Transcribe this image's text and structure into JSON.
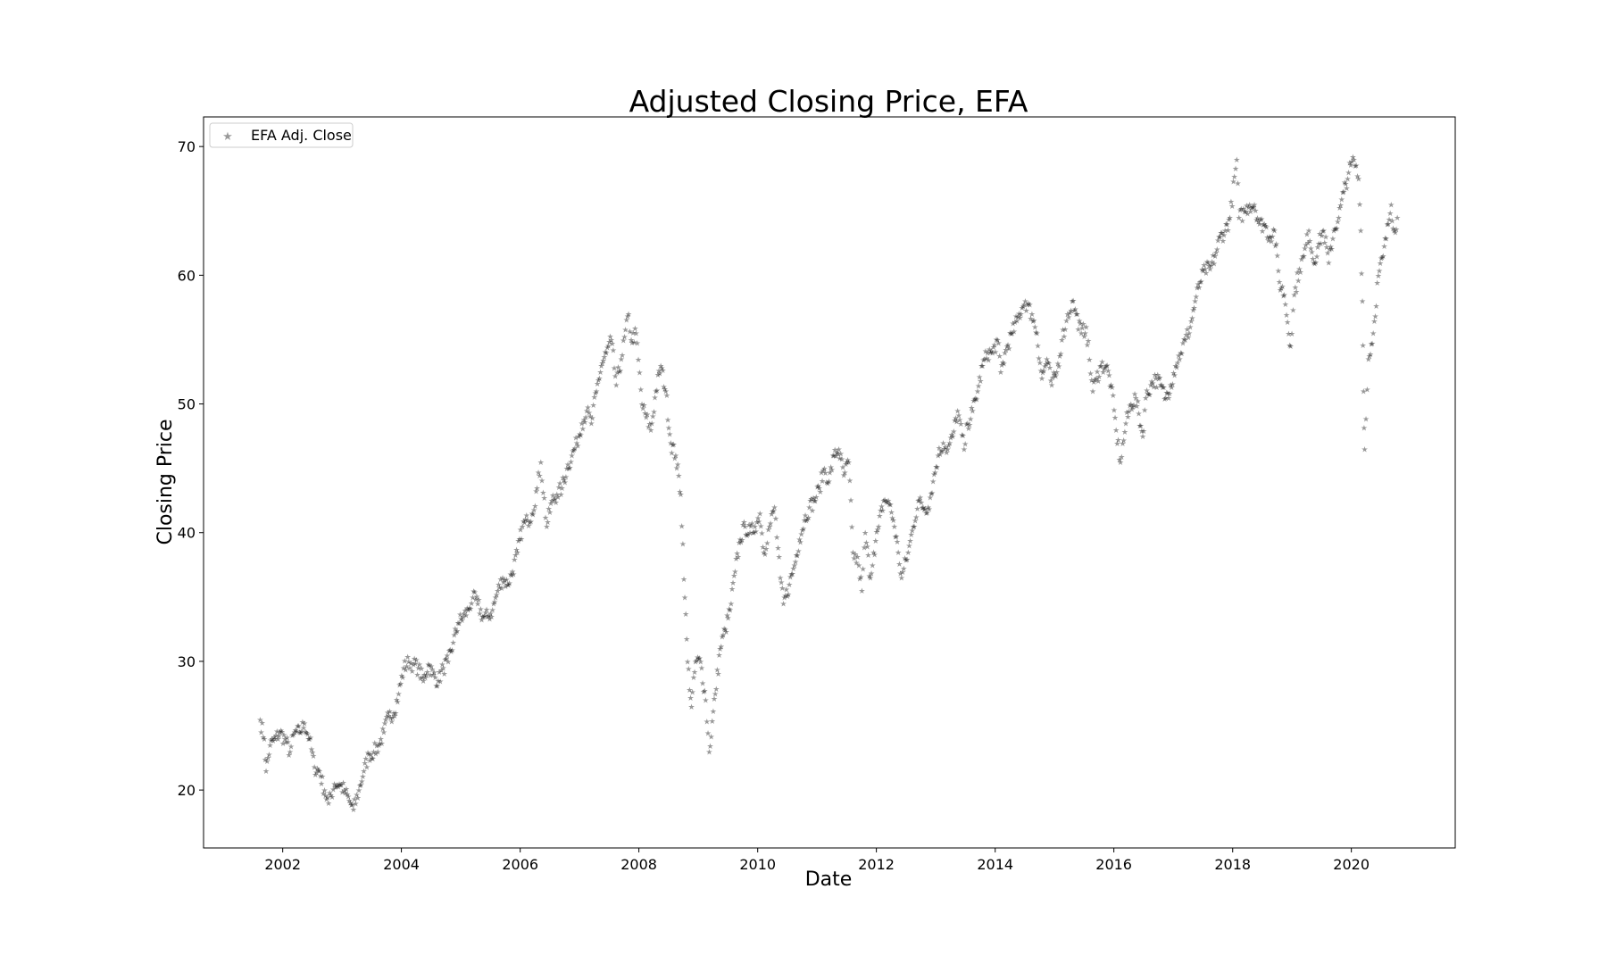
{
  "chart_data": {
    "type": "scatter",
    "title": "Adjusted Closing Price, EFA",
    "xlabel": "Date",
    "ylabel": "Closing Price",
    "xlim": [
      "2000-09-01",
      "2021-10-01"
    ],
    "ylim": [
      15.5,
      72.3
    ],
    "x_ticks": [
      "2002",
      "2004",
      "2006",
      "2008",
      "2010",
      "2012",
      "2014",
      "2016",
      "2018",
      "2020"
    ],
    "y_ticks": [
      "20",
      "30",
      "40",
      "50",
      "60",
      "70"
    ],
    "grid": false,
    "legend_position": "top-left",
    "marker_color": "#000000",
    "marker_alpha": 0.4,
    "series": [
      {
        "name": "EFA Adj. Close",
        "marker": "star",
        "points": [
          [
            "2001-08-15",
            25.5
          ],
          [
            "2001-09-10",
            24.0
          ],
          [
            "2001-09-21",
            21.5
          ],
          [
            "2001-10-15",
            23.5
          ],
          [
            "2001-11-15",
            24.0
          ],
          [
            "2001-12-15",
            24.5
          ],
          [
            "2002-01-15",
            24.0
          ],
          [
            "2002-02-15",
            23.0
          ],
          [
            "2002-03-15",
            24.5
          ],
          [
            "2002-04-15",
            24.5
          ],
          [
            "2002-05-15",
            25.2
          ],
          [
            "2002-06-15",
            24.0
          ],
          [
            "2002-07-15",
            21.8
          ],
          [
            "2002-08-15",
            21.5
          ],
          [
            "2002-09-15",
            20.0
          ],
          [
            "2002-10-10",
            19.0
          ],
          [
            "2002-11-15",
            20.5
          ],
          [
            "2002-12-15",
            20.5
          ],
          [
            "2003-01-15",
            20.0
          ],
          [
            "2003-02-15",
            19.2
          ],
          [
            "2003-03-12",
            18.5
          ],
          [
            "2003-04-15",
            20.0
          ],
          [
            "2003-05-15",
            21.5
          ],
          [
            "2003-06-15",
            22.8
          ],
          [
            "2003-07-15",
            23.0
          ],
          [
            "2003-08-15",
            23.5
          ],
          [
            "2003-09-15",
            24.5
          ],
          [
            "2003-10-15",
            25.8
          ],
          [
            "2003-11-15",
            26.0
          ],
          [
            "2003-12-15",
            27.5
          ],
          [
            "2004-01-15",
            29.5
          ],
          [
            "2004-02-15",
            30.0
          ],
          [
            "2004-03-15",
            29.8
          ],
          [
            "2004-04-15",
            29.5
          ],
          [
            "2004-05-15",
            28.5
          ],
          [
            "2004-06-15",
            29.8
          ],
          [
            "2004-07-15",
            29.0
          ],
          [
            "2004-08-15",
            28.5
          ],
          [
            "2004-09-15",
            29.5
          ],
          [
            "2004-10-15",
            30.0
          ],
          [
            "2004-11-15",
            31.5
          ],
          [
            "2004-12-15",
            33.0
          ],
          [
            "2005-01-15",
            33.5
          ],
          [
            "2005-02-15",
            34.0
          ],
          [
            "2005-03-15",
            35.0
          ],
          [
            "2005-04-15",
            34.5
          ],
          [
            "2005-05-15",
            33.5
          ],
          [
            "2005-06-15",
            33.5
          ],
          [
            "2005-07-15",
            34.0
          ],
          [
            "2005-08-15",
            35.5
          ],
          [
            "2005-09-15",
            36.5
          ],
          [
            "2005-10-15",
            36.0
          ],
          [
            "2005-11-15",
            37.0
          ],
          [
            "2005-12-15",
            38.5
          ],
          [
            "2006-01-15",
            40.5
          ],
          [
            "2006-02-15",
            41.0
          ],
          [
            "2006-03-15",
            41.5
          ],
          [
            "2006-04-15",
            43.5
          ],
          [
            "2006-05-08",
            45.5
          ],
          [
            "2006-06-13",
            40.5
          ],
          [
            "2006-07-15",
            42.5
          ],
          [
            "2006-08-15",
            43.0
          ],
          [
            "2006-09-15",
            43.5
          ],
          [
            "2006-10-15",
            45.0
          ],
          [
            "2006-11-15",
            46.0
          ],
          [
            "2006-12-15",
            47.0
          ],
          [
            "2007-01-15",
            48.5
          ],
          [
            "2007-02-15",
            49.5
          ],
          [
            "2007-03-15",
            48.5
          ],
          [
            "2007-04-15",
            51.0
          ],
          [
            "2007-05-15",
            53.0
          ],
          [
            "2007-06-15",
            54.0
          ],
          [
            "2007-07-15",
            55.0
          ],
          [
            "2007-08-15",
            51.5
          ],
          [
            "2007-09-15",
            53.5
          ],
          [
            "2007-10-30",
            57.0
          ],
          [
            "2007-11-15",
            55.0
          ],
          [
            "2007-12-15",
            55.5
          ],
          [
            "2008-01-20",
            50.0
          ],
          [
            "2008-02-15",
            49.0
          ],
          [
            "2008-03-15",
            48.0
          ],
          [
            "2008-04-15",
            51.0
          ],
          [
            "2008-05-15",
            53.0
          ],
          [
            "2008-06-15",
            51.0
          ],
          [
            "2008-07-15",
            47.0
          ],
          [
            "2008-08-15",
            46.0
          ],
          [
            "2008-09-15",
            43.0
          ],
          [
            "2008-10-10",
            35.0
          ],
          [
            "2008-10-27",
            30.0
          ],
          [
            "2008-11-20",
            26.5
          ],
          [
            "2008-12-15",
            30.0
          ],
          [
            "2009-01-15",
            30.0
          ],
          [
            "2009-02-15",
            27.0
          ],
          [
            "2009-03-09",
            23.0
          ],
          [
            "2009-04-15",
            27.5
          ],
          [
            "2009-05-15",
            31.0
          ],
          [
            "2009-06-15",
            32.5
          ],
          [
            "2009-07-15",
            34.0
          ],
          [
            "2009-08-15",
            37.0
          ],
          [
            "2009-09-15",
            39.5
          ],
          [
            "2009-10-15",
            40.5
          ],
          [
            "2009-11-15",
            40.0
          ],
          [
            "2009-12-15",
            40.5
          ],
          [
            "2010-01-15",
            41.5
          ],
          [
            "2010-02-08",
            38.5
          ],
          [
            "2010-03-15",
            40.5
          ],
          [
            "2010-04-15",
            42.0
          ],
          [
            "2010-05-20",
            36.5
          ],
          [
            "2010-06-08",
            34.5
          ],
          [
            "2010-07-15",
            36.0
          ],
          [
            "2010-08-15",
            37.5
          ],
          [
            "2010-09-15",
            39.5
          ],
          [
            "2010-10-15",
            41.0
          ],
          [
            "2010-11-15",
            42.0
          ],
          [
            "2010-12-15",
            42.5
          ],
          [
            "2011-01-15",
            43.5
          ],
          [
            "2011-02-15",
            45.0
          ],
          [
            "2011-03-15",
            44.0
          ],
          [
            "2011-04-15",
            46.0
          ],
          [
            "2011-05-15",
            46.5
          ],
          [
            "2011-06-15",
            44.5
          ],
          [
            "2011-07-15",
            45.5
          ],
          [
            "2011-08-10",
            38.5
          ],
          [
            "2011-09-15",
            37.5
          ],
          [
            "2011-10-04",
            35.5
          ],
          [
            "2011-10-25",
            40.0
          ],
          [
            "2011-11-25",
            36.5
          ],
          [
            "2011-12-15",
            38.5
          ],
          [
            "2012-01-15",
            40.5
          ],
          [
            "2012-02-15",
            42.5
          ],
          [
            "2012-03-15",
            42.5
          ],
          [
            "2012-04-15",
            41.0
          ],
          [
            "2012-05-15",
            38.5
          ],
          [
            "2012-06-04",
            36.5
          ],
          [
            "2012-07-15",
            38.5
          ],
          [
            "2012-08-15",
            40.5
          ],
          [
            "2012-09-15",
            42.5
          ],
          [
            "2012-10-15",
            42.0
          ],
          [
            "2012-11-15",
            42.0
          ],
          [
            "2012-12-15",
            44.0
          ],
          [
            "2013-01-15",
            46.0
          ],
          [
            "2013-02-15",
            47.0
          ],
          [
            "2013-03-15",
            46.5
          ],
          [
            "2013-04-15",
            47.5
          ],
          [
            "2013-05-15",
            49.5
          ],
          [
            "2013-06-24",
            46.5
          ],
          [
            "2013-07-15",
            48.5
          ],
          [
            "2013-08-15",
            49.5
          ],
          [
            "2013-09-15",
            51.0
          ],
          [
            "2013-10-15",
            53.0
          ],
          [
            "2013-11-15",
            54.0
          ],
          [
            "2013-12-15",
            54.0
          ],
          [
            "2014-01-15",
            55.0
          ],
          [
            "2014-02-04",
            52.5
          ],
          [
            "2014-03-15",
            54.5
          ],
          [
            "2014-04-15",
            55.5
          ],
          [
            "2014-05-15",
            56.5
          ],
          [
            "2014-06-15",
            57.5
          ],
          [
            "2014-07-05",
            58.0
          ],
          [
            "2014-08-15",
            57.0
          ],
          [
            "2014-09-15",
            55.5
          ],
          [
            "2014-10-15",
            52.0
          ],
          [
            "2014-11-15",
            53.5
          ],
          [
            "2014-12-15",
            51.5
          ],
          [
            "2015-01-15",
            52.5
          ],
          [
            "2015-02-15",
            55.0
          ],
          [
            "2015-03-15",
            56.5
          ],
          [
            "2015-04-20",
            58.0
          ],
          [
            "2015-05-15",
            57.0
          ],
          [
            "2015-06-15",
            55.5
          ],
          [
            "2015-07-15",
            56.0
          ],
          [
            "2015-08-24",
            51.0
          ],
          [
            "2015-09-15",
            52.0
          ],
          [
            "2015-10-15",
            53.0
          ],
          [
            "2015-11-15",
            53.0
          ],
          [
            "2015-12-15",
            51.5
          ],
          [
            "2016-01-15",
            48.0
          ],
          [
            "2016-02-11",
            45.5
          ],
          [
            "2016-03-15",
            48.5
          ],
          [
            "2016-04-15",
            50.0
          ],
          [
            "2016-05-15",
            50.5
          ],
          [
            "2016-06-27",
            47.5
          ],
          [
            "2016-07-15",
            50.5
          ],
          [
            "2016-08-15",
            51.5
          ],
          [
            "2016-09-15",
            52.0
          ],
          [
            "2016-10-15",
            51.5
          ],
          [
            "2016-11-15",
            50.5
          ],
          [
            "2016-12-15",
            51.5
          ],
          [
            "2017-01-15",
            53.0
          ],
          [
            "2017-02-15",
            54.0
          ],
          [
            "2017-03-15",
            55.0
          ],
          [
            "2017-04-15",
            56.0
          ],
          [
            "2017-05-15",
            58.0
          ],
          [
            "2017-06-15",
            59.5
          ],
          [
            "2017-07-15",
            60.5
          ],
          [
            "2017-08-15",
            60.5
          ],
          [
            "2017-09-15",
            61.5
          ],
          [
            "2017-10-15",
            63.0
          ],
          [
            "2017-11-15",
            63.5
          ],
          [
            "2017-12-15",
            64.5
          ],
          [
            "2018-01-26",
            69.0
          ],
          [
            "2018-02-09",
            64.5
          ],
          [
            "2018-03-15",
            65.0
          ],
          [
            "2018-04-15",
            65.5
          ],
          [
            "2018-05-15",
            65.5
          ],
          [
            "2018-06-15",
            64.0
          ],
          [
            "2018-07-15",
            64.0
          ],
          [
            "2018-08-15",
            63.0
          ],
          [
            "2018-09-15",
            63.5
          ],
          [
            "2018-10-15",
            59.5
          ],
          [
            "2018-11-15",
            58.5
          ],
          [
            "2018-12-24",
            54.5
          ],
          [
            "2019-01-15",
            58.5
          ],
          [
            "2019-02-15",
            60.5
          ],
          [
            "2019-03-15",
            61.5
          ],
          [
            "2019-04-15",
            63.5
          ],
          [
            "2019-05-15",
            61.0
          ],
          [
            "2019-06-15",
            62.5
          ],
          [
            "2019-07-15",
            63.5
          ],
          [
            "2019-08-15",
            61.0
          ],
          [
            "2019-09-15",
            63.5
          ],
          [
            "2019-10-15",
            64.5
          ],
          [
            "2019-11-15",
            66.5
          ],
          [
            "2019-12-15",
            68.0
          ],
          [
            "2020-01-17",
            69.0
          ],
          [
            "2020-02-15",
            67.5
          ],
          [
            "2020-02-28",
            63.5
          ],
          [
            "2020-03-09",
            58.0
          ],
          [
            "2020-03-16",
            51.0
          ],
          [
            "2020-03-23",
            46.5
          ],
          [
            "2020-04-15",
            53.5
          ],
          [
            "2020-05-15",
            55.5
          ],
          [
            "2020-06-15",
            60.0
          ],
          [
            "2020-07-15",
            61.5
          ],
          [
            "2020-08-15",
            64.0
          ],
          [
            "2020-09-02",
            65.5
          ],
          [
            "2020-09-20",
            63.5
          ],
          [
            "2020-10-10",
            64.5
          ]
        ]
      }
    ]
  }
}
